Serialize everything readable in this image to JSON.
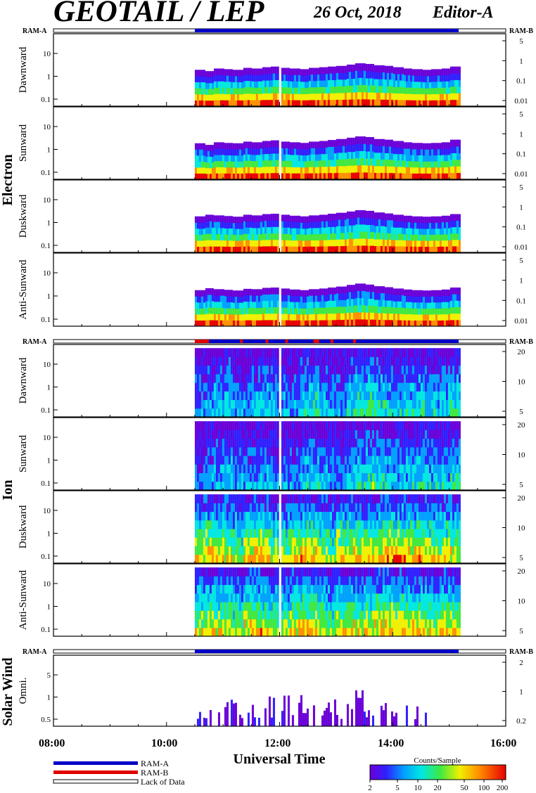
{
  "header": {
    "title": "GEOTAIL / LEP",
    "date": "26 Oct, 2018",
    "editor": "Editor-A"
  },
  "labels": {
    "ram_a": "RAM-A",
    "ram_b": "RAM-B"
  },
  "groups": {
    "electron": "Electron",
    "ion": "Ion",
    "solar_wind": "Solar Wind"
  },
  "axis": {
    "xlabel": "Universal Time",
    "ticks": [
      "08:00",
      "10:00",
      "12:00",
      "14:00",
      "16:00"
    ]
  },
  "legend": {
    "ram_a": "RAM-A",
    "ram_b": "RAM-B",
    "lack": "Lack of Data",
    "colors": {
      "ram_a": "#0000c8",
      "ram_b": "#e00000"
    }
  },
  "colorbar": {
    "title": "Counts/Sample",
    "ticks": [
      "2",
      "5",
      "10",
      "20",
      "50",
      "100",
      "200"
    ]
  },
  "chart_data": [
    {
      "type": "heatmap",
      "group": "Electron",
      "ylabel": "Dawnward",
      "x_range": [
        "08:00",
        "16:00"
      ],
      "data_start": "10:30",
      "data_end": "15:10",
      "gap": "12:00",
      "left_ticks": [
        "10",
        "1",
        "0.1"
      ],
      "right_ticks": [
        "5",
        "1",
        "0.1",
        "0.01"
      ],
      "profile": [
        0.56,
        0.52,
        0.6,
        0.58,
        0.56,
        0.62,
        0.6,
        0.64,
        0.66,
        0.62,
        0.6,
        0.58,
        0.62,
        0.64,
        0.66,
        0.68,
        0.72,
        0.76,
        0.74,
        0.7,
        0.68,
        0.64,
        0.6,
        0.58,
        0.56,
        0.58,
        0.6,
        0.66
      ]
    },
    {
      "type": "heatmap",
      "group": "Electron",
      "ylabel": "Sunward",
      "x_range": [
        "08:00",
        "16:00"
      ],
      "data_start": "10:30",
      "data_end": "15:10",
      "gap": "12:00",
      "left_ticks": [
        "10",
        "1",
        "0.1"
      ],
      "right_ticks": [
        "5",
        "1",
        "0.1",
        "0.01"
      ],
      "profile": [
        0.55,
        0.5,
        0.58,
        0.56,
        0.55,
        0.6,
        0.58,
        0.62,
        0.64,
        0.6,
        0.58,
        0.56,
        0.6,
        0.62,
        0.65,
        0.68,
        0.72,
        0.76,
        0.74,
        0.68,
        0.66,
        0.62,
        0.58,
        0.56,
        0.55,
        0.56,
        0.58,
        0.66
      ]
    },
    {
      "type": "heatmap",
      "group": "Electron",
      "ylabel": "Duskward",
      "x_range": [
        "08:00",
        "16:00"
      ],
      "data_start": "10:30",
      "data_end": "15:10",
      "gap": "12:00",
      "left_ticks": [
        "10",
        "1",
        "0.1"
      ],
      "right_ticks": [
        "5",
        "1",
        "0.1",
        "0.01"
      ],
      "profile": [
        0.55,
        0.6,
        0.58,
        0.56,
        0.54,
        0.6,
        0.58,
        0.62,
        0.63,
        0.6,
        0.57,
        0.55,
        0.58,
        0.6,
        0.63,
        0.66,
        0.7,
        0.74,
        0.72,
        0.67,
        0.64,
        0.6,
        0.57,
        0.55,
        0.54,
        0.55,
        0.57,
        0.62
      ]
    },
    {
      "type": "heatmap",
      "group": "Electron",
      "ylabel": "Anti-Sunward",
      "x_range": [
        "08:00",
        "16:00"
      ],
      "data_start": "10:30",
      "data_end": "15:10",
      "gap": "12:00",
      "left_ticks": [
        "10",
        "1",
        "0.1"
      ],
      "right_ticks": [
        "5",
        "1",
        "0.1",
        "0.01"
      ],
      "profile": [
        0.54,
        0.6,
        0.57,
        0.55,
        0.53,
        0.58,
        0.57,
        0.61,
        0.62,
        0.59,
        0.56,
        0.54,
        0.57,
        0.59,
        0.62,
        0.65,
        0.7,
        0.74,
        0.71,
        0.66,
        0.63,
        0.59,
        0.56,
        0.54,
        0.53,
        0.54,
        0.56,
        0.62
      ]
    },
    {
      "type": "heatmap",
      "group": "Ion",
      "ylabel": "Dawnward",
      "x_range": [
        "08:00",
        "16:00"
      ],
      "data_start": "10:30",
      "data_end": "15:10",
      "gap": "12:00",
      "left_ticks": [
        "10",
        "1",
        "0.1"
      ],
      "right_ticks": [
        "20",
        "10",
        "5"
      ],
      "profile": [
        0.3,
        0.35,
        0.4,
        0.45,
        0.35,
        0.3,
        0.4,
        0.42,
        0.38,
        0.35,
        0.3,
        0.45,
        0.5,
        0.4,
        0.35,
        0.3,
        0.45,
        0.5,
        0.55,
        0.5,
        0.45,
        0.4,
        0.45,
        0.5,
        0.45,
        0.4,
        0.45,
        0.5
      ]
    },
    {
      "type": "heatmap",
      "group": "Ion",
      "ylabel": "Sunward",
      "x_range": [
        "08:00",
        "16:00"
      ],
      "data_start": "10:30",
      "data_end": "15:10",
      "gap": "12:00",
      "left_ticks": [
        "10",
        "1",
        "0.1"
      ],
      "right_ticks": [
        "20",
        "10",
        "5"
      ],
      "profile": [
        0.28,
        0.32,
        0.38,
        0.42,
        0.34,
        0.3,
        0.38,
        0.4,
        0.36,
        0.33,
        0.3,
        0.42,
        0.46,
        0.38,
        0.33,
        0.3,
        0.42,
        0.48,
        0.52,
        0.48,
        0.44,
        0.4,
        0.42,
        0.46,
        0.42,
        0.4,
        0.42,
        0.48
      ]
    },
    {
      "type": "heatmap",
      "group": "Ion",
      "ylabel": "Duskward",
      "x_range": [
        "08:00",
        "16:00"
      ],
      "data_start": "10:30",
      "data_end": "15:10",
      "gap": "12:00",
      "left_ticks": [
        "10",
        "1",
        "0.1"
      ],
      "right_ticks": [
        "20",
        "10",
        "5"
      ],
      "profile": [
        0.72,
        0.78,
        0.74,
        0.7,
        0.6,
        0.75,
        0.78,
        0.72,
        0.68,
        0.62,
        0.74,
        0.78,
        0.76,
        0.7,
        0.62,
        0.78,
        0.74,
        0.7,
        0.72,
        0.75,
        0.78,
        0.8,
        0.78,
        0.76,
        0.72,
        0.7,
        0.74,
        0.72
      ]
    },
    {
      "type": "heatmap",
      "group": "Ion",
      "ylabel": "Anti-Sunward",
      "x_range": [
        "08:00",
        "16:00"
      ],
      "data_start": "10:30",
      "data_end": "15:10",
      "gap": "12:00",
      "left_ticks": [
        "10",
        "1",
        "0.1"
      ],
      "right_ticks": [
        "20",
        "10",
        "5"
      ],
      "profile": [
        0.68,
        0.74,
        0.72,
        0.68,
        0.58,
        0.72,
        0.76,
        0.7,
        0.66,
        0.6,
        0.72,
        0.76,
        0.74,
        0.68,
        0.6,
        0.76,
        0.72,
        0.68,
        0.7,
        0.74,
        0.76,
        0.78,
        0.76,
        0.74,
        0.7,
        0.68,
        0.72,
        0.7
      ]
    },
    {
      "type": "heatmap",
      "group": "Solar Wind",
      "ylabel": "Omni.",
      "x_range": [
        "08:00",
        "16:00"
      ],
      "data_start": "10:30",
      "data_end": "15:10",
      "gap": "12:00",
      "left_ticks": [
        "5",
        "1",
        "0.5"
      ],
      "right_ticks": [
        "2",
        "1",
        "0.2"
      ],
      "profile": [
        0.25,
        0.2,
        0.15,
        0.22,
        0.3,
        0.2,
        0.15,
        0.25,
        0.3,
        0.28,
        0.2,
        0.25,
        0.3,
        0.28,
        0.22,
        0.18,
        0.28,
        0.3,
        0.25,
        0.2,
        0.18,
        0.22,
        0.2,
        0.15,
        0.1,
        0.05,
        0.02,
        0.0
      ]
    }
  ]
}
